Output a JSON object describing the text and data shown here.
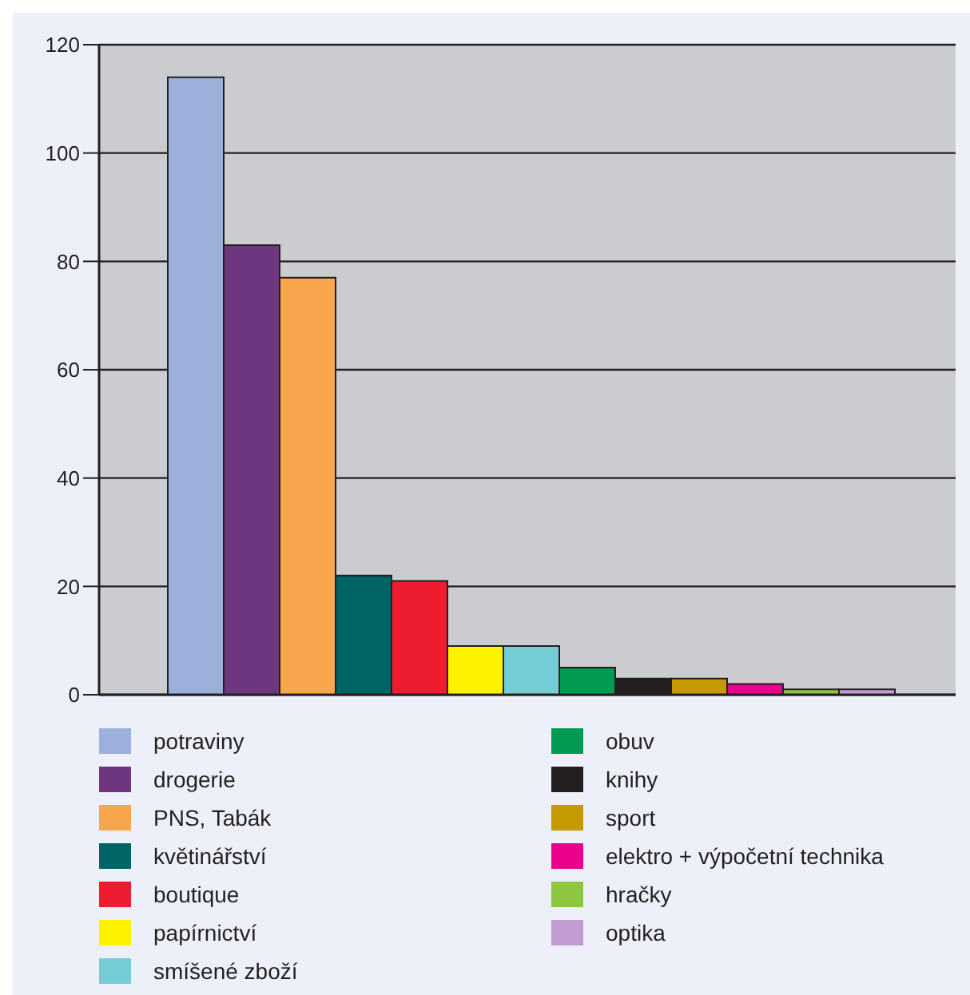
{
  "chart_data": {
    "type": "bar",
    "categories": [
      null
    ],
    "series": [
      {
        "name": "potraviny",
        "color": "#9db0dc",
        "values": [
          114
        ]
      },
      {
        "name": "drogerie",
        "color": "#6f3680",
        "values": [
          83
        ]
      },
      {
        "name": "PNS, Tabák",
        "color": "#f8a64e",
        "values": [
          77
        ]
      },
      {
        "name": "květinářství",
        "color": "#006366",
        "values": [
          22
        ]
      },
      {
        "name": "boutique",
        "color": "#ed1c2e",
        "values": [
          21
        ]
      },
      {
        "name": "papírnictví",
        "color": "#fff200",
        "values": [
          9
        ]
      },
      {
        "name": "smíšené zboží",
        "color": "#74ccd4",
        "values": [
          9
        ]
      },
      {
        "name": "obuv",
        "color": "#009a52",
        "values": [
          5
        ]
      },
      {
        "name": "knihy",
        "color": "#231f20",
        "values": [
          3
        ]
      },
      {
        "name": "sport",
        "color": "#c49a00",
        "values": [
          3
        ]
      },
      {
        "name": "elektro + výpočetní technika",
        "color": "#eb008b",
        "values": [
          2
        ]
      },
      {
        "name": "hračky",
        "color": "#8dc63f",
        "values": [
          1
        ]
      },
      {
        "name": "optika",
        "color": "#c39bd3",
        "values": [
          1
        ]
      }
    ],
    "ylim": [
      0,
      120
    ],
    "yticks": [
      0,
      20,
      40,
      60,
      80,
      100,
      120
    ],
    "grid": "y",
    "legend": "bottom",
    "tick_labels": "y"
  }
}
